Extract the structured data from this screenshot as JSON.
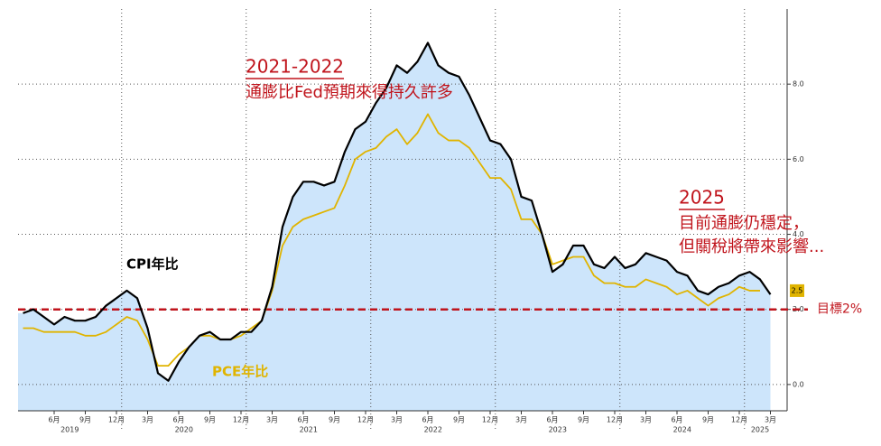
{
  "chart_data": {
    "type": "line",
    "categories": [
      null,
      null,
      null,
      "6月",
      null,
      null,
      "9月",
      null,
      null,
      "12月",
      null,
      null,
      "3月",
      null,
      null,
      "6月",
      null,
      null,
      "9月",
      null,
      null,
      "12月",
      null,
      null,
      "3月",
      null,
      null,
      "6月",
      null,
      null,
      "9月",
      null,
      null,
      "12月",
      null,
      null,
      "3月",
      null,
      null,
      "6月",
      null,
      null,
      "9月",
      null,
      null,
      "12月",
      null,
      null,
      "3月",
      null,
      null,
      "6月",
      null,
      null,
      "9月",
      null,
      null,
      "12月",
      null,
      null,
      "3月",
      null,
      null,
      "6月",
      null,
      null,
      "9月",
      null,
      null,
      "12月",
      null,
      null,
      "3月"
    ],
    "years": [
      "2019",
      "2020",
      "2021",
      "2022",
      "2023",
      "2024",
      "2025"
    ],
    "series": [
      {
        "name": "CPI年比",
        "color": "#000000",
        "area_color": "#cde5fb",
        "values": [
          1.9,
          2.0,
          1.8,
          1.6,
          1.8,
          1.7,
          1.7,
          1.8,
          2.1,
          2.3,
          2.5,
          2.3,
          1.5,
          0.3,
          0.1,
          0.6,
          1.0,
          1.3,
          1.4,
          1.2,
          1.2,
          1.4,
          1.4,
          1.7,
          2.6,
          4.2,
          5.0,
          5.4,
          5.4,
          5.3,
          5.4,
          6.2,
          6.8,
          7.0,
          7.5,
          7.9,
          8.5,
          8.3,
          8.6,
          9.1,
          8.5,
          8.3,
          8.2,
          7.7,
          7.1,
          6.5,
          6.4,
          6.0,
          5.0,
          4.9,
          4.0,
          3.0,
          3.2,
          3.7,
          3.7,
          3.2,
          3.1,
          3.4,
          3.1,
          3.2,
          3.5,
          3.4,
          3.3,
          3.0,
          2.9,
          2.5,
          2.4,
          2.6,
          2.7,
          2.9,
          3.0,
          2.8,
          2.4
        ]
      },
      {
        "name": "PCE年比",
        "color": "#e0b400",
        "values": [
          1.5,
          1.5,
          1.4,
          1.4,
          1.4,
          1.4,
          1.3,
          1.3,
          1.4,
          1.6,
          1.8,
          1.7,
          1.2,
          0.5,
          0.5,
          0.8,
          1.0,
          1.3,
          1.3,
          1.2,
          1.2,
          1.3,
          1.5,
          1.7,
          2.5,
          3.7,
          4.2,
          4.4,
          4.5,
          4.6,
          4.7,
          5.3,
          6.0,
          6.2,
          6.3,
          6.6,
          6.8,
          6.4,
          6.7,
          7.2,
          6.7,
          6.5,
          6.5,
          6.3,
          5.9,
          5.5,
          5.5,
          5.2,
          4.4,
          4.4,
          4.0,
          3.2,
          3.3,
          3.4,
          3.4,
          2.9,
          2.7,
          2.7,
          2.6,
          2.6,
          2.8,
          2.7,
          2.6,
          2.4,
          2.5,
          2.3,
          2.1,
          2.3,
          2.4,
          2.6,
          2.5,
          2.5,
          null
        ],
        "last_label": "2.5"
      }
    ],
    "ylim": [
      -0.7,
      10
    ],
    "yticks": [
      {
        "value": 0,
        "label": "0.0"
      },
      {
        "value": 2,
        "label": "2.0"
      },
      {
        "value": 4,
        "label": "4.0"
      },
      {
        "value": 6,
        "label": "6.0"
      },
      {
        "value": 8,
        "label": "8.0"
      }
    ],
    "grid": true,
    "target": {
      "value": 2,
      "label": "目標2%",
      "color": "#c0141c"
    },
    "annotations": [
      {
        "title": "2021-2022",
        "lines": [
          "通膨比Fed預期來得持久許多"
        ]
      },
      {
        "title": "2025",
        "lines": [
          "目前通膨仍穩定，",
          "但關稅將帶來影響..."
        ]
      }
    ]
  }
}
